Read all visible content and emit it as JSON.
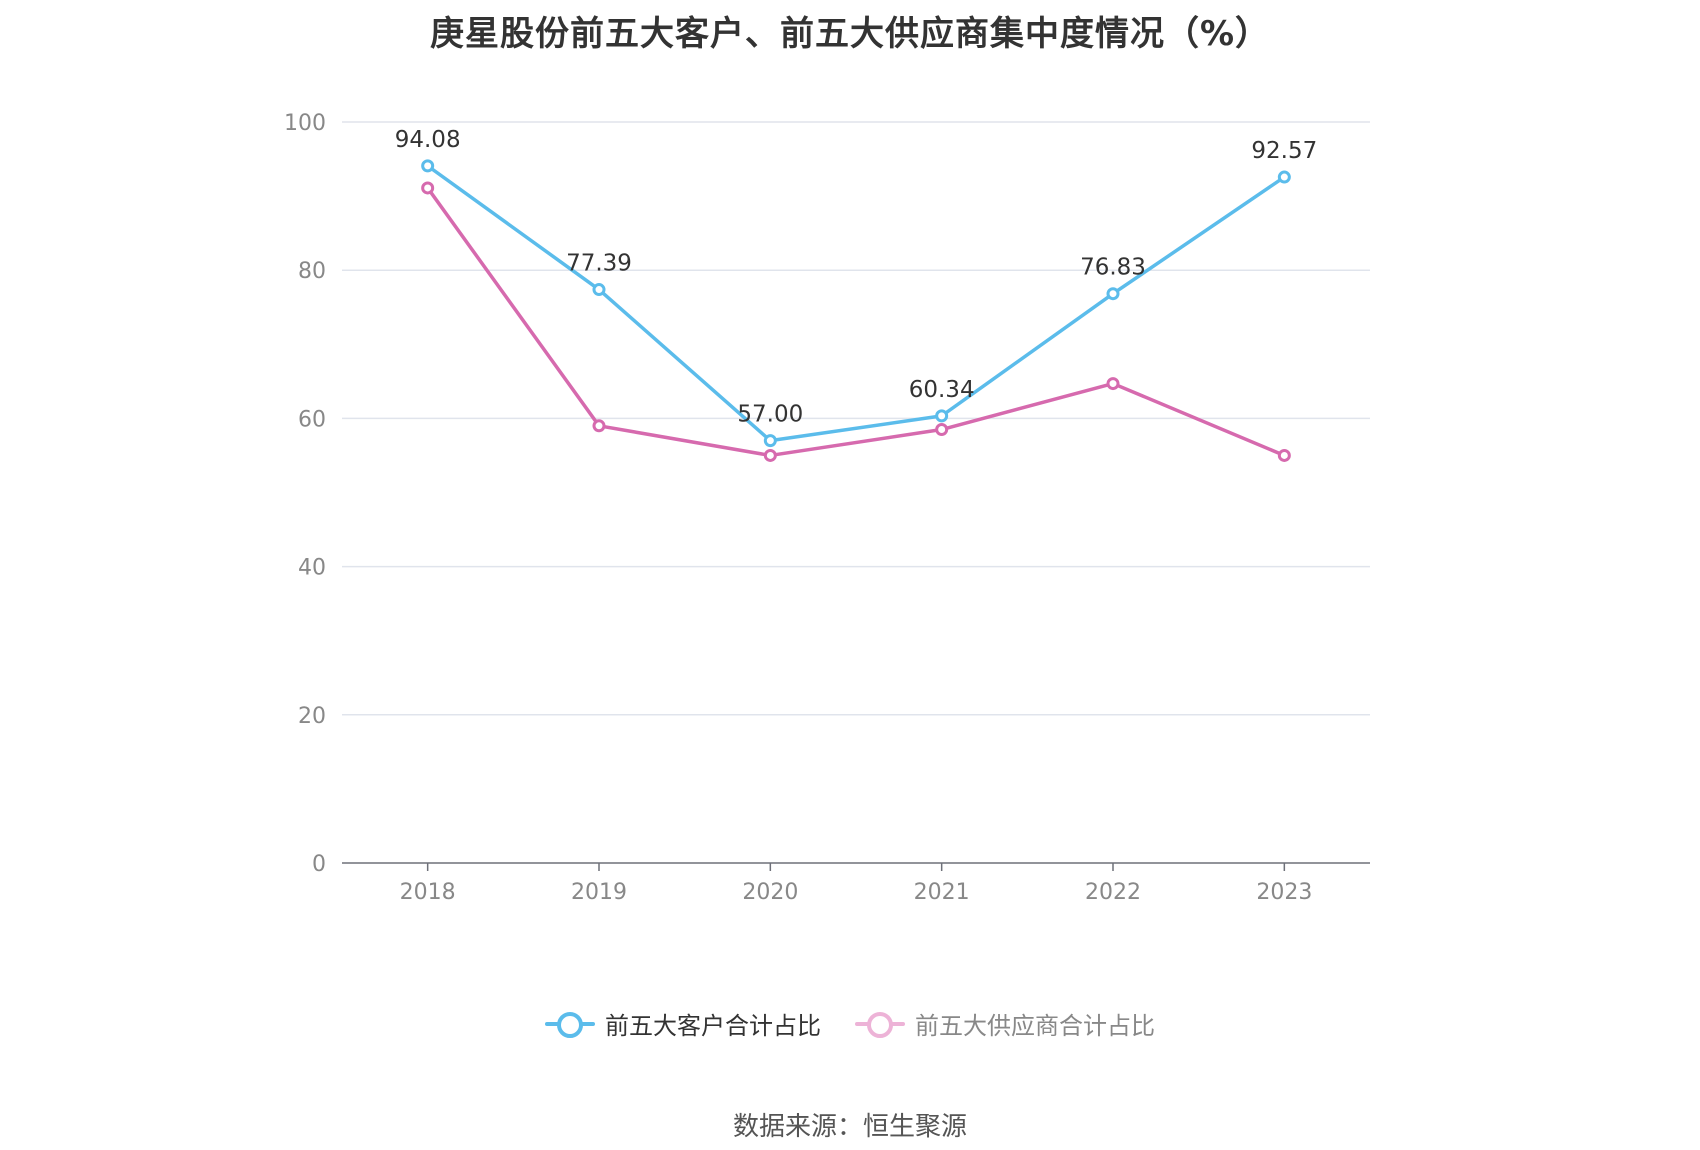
{
  "chart_data": {
    "type": "line",
    "title": "庚星股份前五大客户、前五大供应商集中度情况（%）",
    "categories": [
      "2018",
      "2019",
      "2020",
      "2021",
      "2022",
      "2023"
    ],
    "series": [
      {
        "name": "前五大客户合计占比",
        "color": "#5BBCEB",
        "values": [
          94.08,
          77.39,
          57.0,
          60.34,
          76.83,
          92.57
        ],
        "labels": [
          "94.08",
          "77.39",
          "57.00",
          "60.34",
          "76.83",
          "92.57"
        ],
        "show_labels": true
      },
      {
        "name": "前五大供应商合计占比",
        "color": "#D66AAE",
        "values": [
          91.1,
          59.0,
          55.0,
          58.5,
          64.7,
          55.0
        ],
        "show_labels": false
      }
    ],
    "y_ticks": [
      "0",
      "20",
      "40",
      "60",
      "80",
      "100"
    ],
    "ylim": [
      0,
      100
    ],
    "grid": true,
    "legend_position": "bottom-center"
  },
  "source_text": "数据来源：恒生聚源"
}
